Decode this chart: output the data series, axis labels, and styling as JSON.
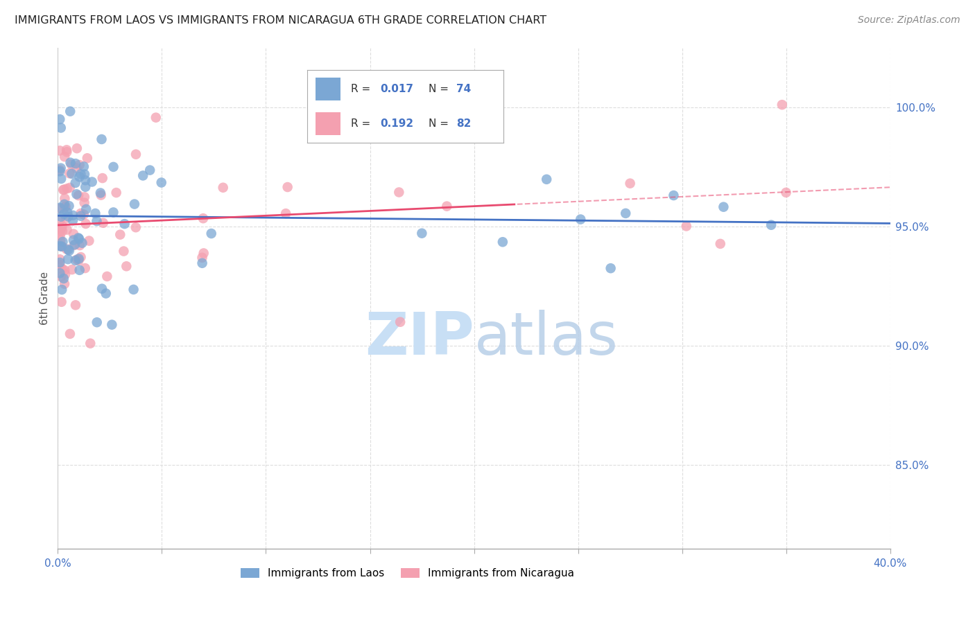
{
  "title": "IMMIGRANTS FROM LAOS VS IMMIGRANTS FROM NICARAGUA 6TH GRADE CORRELATION CHART",
  "source": "Source: ZipAtlas.com",
  "ylabel": "6th Grade",
  "yaxis_labels": [
    "100.0%",
    "95.0%",
    "90.0%",
    "85.0%"
  ],
  "yaxis_values": [
    1.0,
    0.95,
    0.9,
    0.85
  ],
  "xmin": 0.0,
  "xmax": 0.4,
  "ymin": 0.815,
  "ymax": 1.025,
  "R_laos": 0.017,
  "N_laos": 74,
  "R_nicaragua": 0.192,
  "N_nicaragua": 82,
  "color_laos": "#7ba7d4",
  "color_nicaragua": "#f4a0b0",
  "color_laos_line": "#4472c4",
  "color_nicaragua_line": "#e84a6f",
  "watermark_color": "#c8dff5",
  "axis_label_color": "#4472c4",
  "grid_color": "#dddddd",
  "x_ticks": [
    0.0,
    0.05,
    0.1,
    0.15,
    0.2,
    0.25,
    0.3,
    0.35,
    0.4
  ]
}
